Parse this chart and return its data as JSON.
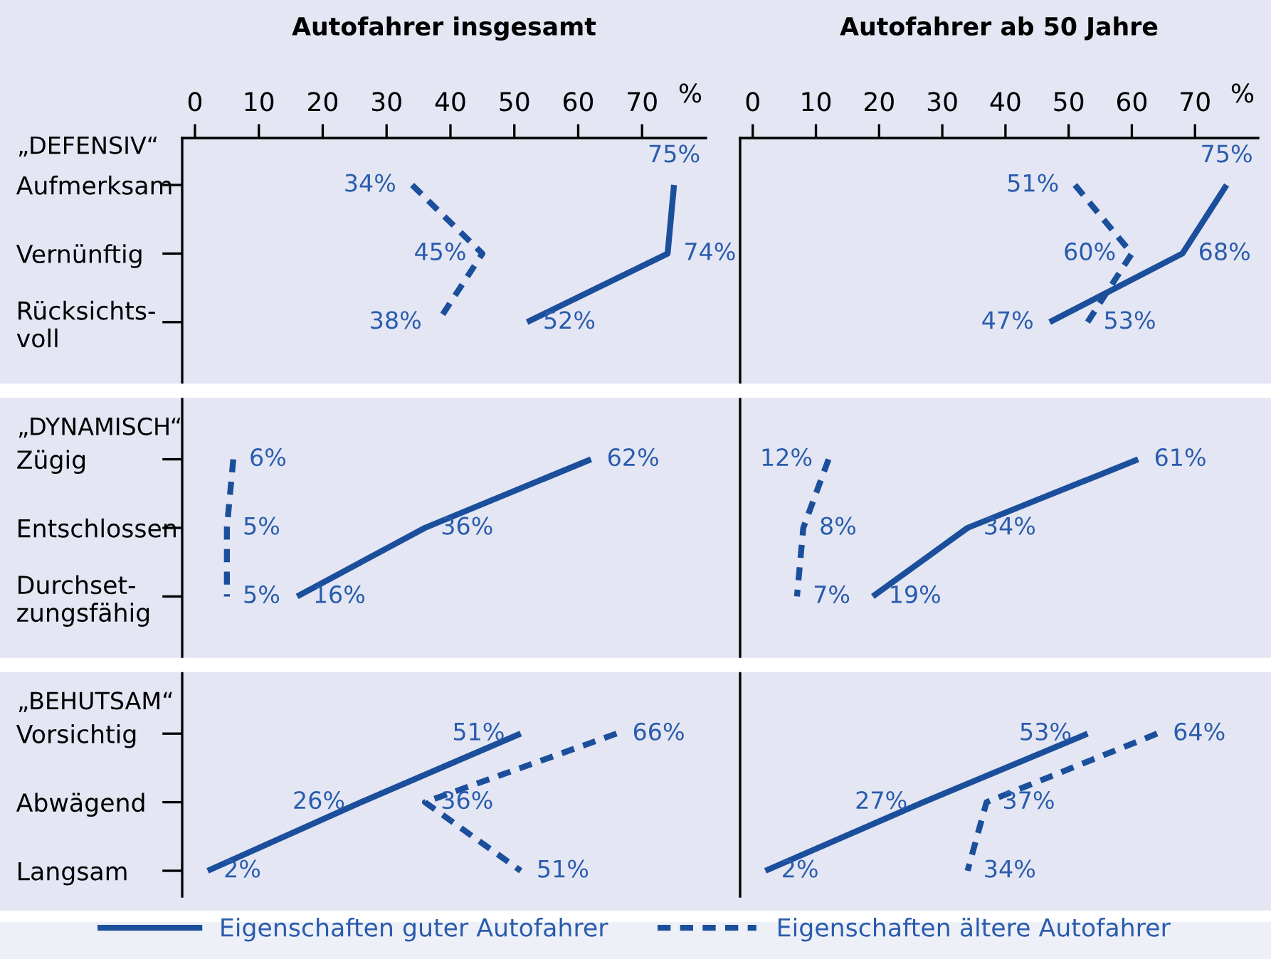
{
  "chart_data": [
    {
      "type": "line",
      "orientation": "horizontal",
      "title": "Autofahrer insgesamt",
      "xlabel": "%",
      "xlim": [
        -2,
        80
      ],
      "xticks": [
        0,
        10,
        20,
        30,
        40,
        50,
        60,
        70
      ],
      "legend": "bottom",
      "annotations": [
        "„DEFENSIV“",
        "„DYNAMISCH“",
        "„BEHUTSAM“"
      ],
      "categories": [
        "Aufmerksam",
        "Vernünftig",
        "Rücksichts-\nvoll",
        null,
        "Zügig",
        "Entschlossen",
        "Durchset-\nzungsfähig",
        null,
        "Vorsichtig",
        "Abwägend",
        "Langsam"
      ],
      "series": [
        {
          "name": "Eigenschaften guter Autofahrer",
          "color": "#1b4f9c",
          "line_style": "solid",
          "values": [
            75,
            74,
            52,
            null,
            62,
            36,
            16,
            null,
            51,
            26,
            2
          ],
          "value_labels": [
            "75%",
            "74%",
            "52%",
            null,
            "62%",
            "36%",
            "16%",
            null,
            "51%",
            "26%",
            "2%"
          ]
        },
        {
          "name": "Eigenschaften ältere Autofahrer",
          "color": "#1b4f9c",
          "line_style": "dashed",
          "values": [
            34,
            45,
            38,
            null,
            6,
            5,
            5,
            null,
            66,
            36,
            51
          ],
          "value_labels": [
            "34%",
            "45%",
            "38%",
            null,
            "6%",
            "5%",
            "5%",
            null,
            "66%",
            "36%",
            "51%"
          ]
        }
      ]
    },
    {
      "type": "line",
      "orientation": "horizontal",
      "title": "Autofahrer ab 50 Jahre",
      "xlabel": "%",
      "xlim": [
        -2,
        80
      ],
      "xticks": [
        0,
        10,
        20,
        30,
        40,
        50,
        60,
        70
      ],
      "tick_labels": "x",
      "categories": [
        null,
        null,
        null,
        null,
        null,
        null,
        null,
        null,
        null,
        null,
        null
      ],
      "series": [
        {
          "name": "Eigenschaften guter Autofahrer",
          "color": "#1b4f9c",
          "line_style": "solid",
          "values": [
            75,
            68,
            47,
            null,
            61,
            34,
            19,
            null,
            53,
            27,
            2
          ],
          "value_labels": [
            "75%",
            "68%",
            "47%",
            null,
            "61%",
            "34%",
            "19%",
            null,
            "53%",
            "27%",
            "2%"
          ]
        },
        {
          "name": "Eigenschaften ältere Autofahrer",
          "color": "#1b4f9c",
          "line_style": "dashed",
          "values": [
            51,
            60,
            53,
            null,
            12,
            8,
            7,
            null,
            64,
            37,
            34
          ],
          "value_labels": [
            "51%",
            "60%",
            "53%",
            null,
            "12%",
            "8%",
            "7%",
            null,
            "64%",
            "37%",
            "34%"
          ]
        }
      ]
    }
  ]
}
